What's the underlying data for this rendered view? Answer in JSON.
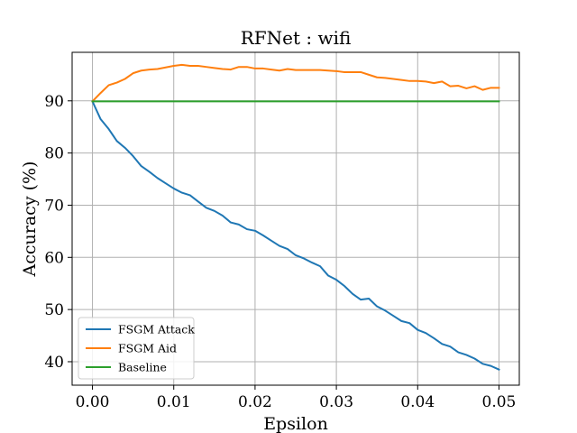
{
  "chart_data": {
    "type": "line",
    "title": "RFNet : wifi",
    "xlabel": "Epsilon",
    "ylabel": "Accuracy (%)",
    "xlim": [
      -0.0025,
      0.0525
    ],
    "ylim": [
      35.5,
      99.3
    ],
    "xticks": [
      0.0,
      0.01,
      0.02,
      0.03,
      0.04,
      0.05
    ],
    "xtick_labels": [
      "0.00",
      "0.01",
      "0.02",
      "0.03",
      "0.04",
      "0.05"
    ],
    "yticks": [
      40,
      50,
      60,
      70,
      80,
      90
    ],
    "ytick_labels": [
      "40",
      "50",
      "60",
      "70",
      "80",
      "90"
    ],
    "grid": true,
    "legend_position": "lower-left",
    "x": [
      0.0,
      0.001,
      0.002,
      0.003,
      0.004,
      0.005,
      0.006,
      0.007,
      0.008,
      0.009,
      0.01,
      0.011,
      0.012,
      0.013,
      0.014,
      0.015,
      0.016,
      0.017,
      0.018,
      0.019,
      0.02,
      0.021,
      0.022,
      0.023,
      0.024,
      0.025,
      0.026,
      0.027,
      0.028,
      0.029,
      0.03,
      0.031,
      0.032,
      0.033,
      0.034,
      0.035,
      0.036,
      0.037,
      0.038,
      0.039,
      0.04,
      0.041,
      0.042,
      0.043,
      0.044,
      0.045,
      0.046,
      0.047,
      0.048,
      0.049,
      0.05
    ],
    "series": [
      {
        "name": "FSGM Attack",
        "color": "#1f77b4",
        "values": [
          89.9,
          86.5,
          84.6,
          82.3,
          81.0,
          79.4,
          77.5,
          76.4,
          75.2,
          74.2,
          73.2,
          72.4,
          71.9,
          70.7,
          69.5,
          68.9,
          68.0,
          66.7,
          66.3,
          65.4,
          65.1,
          64.2,
          63.2,
          62.2,
          61.6,
          60.4,
          59.8,
          59.0,
          58.3,
          56.5,
          55.7,
          54.5,
          53.0,
          51.9,
          52.1,
          50.6,
          49.8,
          48.8,
          47.8,
          47.4,
          46.1,
          45.5,
          44.5,
          43.4,
          42.9,
          41.8,
          41.3,
          40.6,
          39.6,
          39.2,
          38.5
        ]
      },
      {
        "name": "FSGM Aid",
        "color": "#ff7f0e",
        "values": [
          89.9,
          91.5,
          93.0,
          93.5,
          94.2,
          95.3,
          95.8,
          96.0,
          96.1,
          96.4,
          96.7,
          96.9,
          96.7,
          96.7,
          96.5,
          96.3,
          96.1,
          96.0,
          96.5,
          96.5,
          96.2,
          96.2,
          96.0,
          95.8,
          96.1,
          95.9,
          95.9,
          95.9,
          95.9,
          95.8,
          95.7,
          95.5,
          95.5,
          95.5,
          95.0,
          94.5,
          94.4,
          94.2,
          94.0,
          93.8,
          93.8,
          93.7,
          93.4,
          93.7,
          92.8,
          92.9,
          92.4,
          92.8,
          92.1,
          92.5,
          92.5
        ]
      },
      {
        "name": "Baseline",
        "color": "#2ca02c",
        "values": [
          89.9,
          89.9,
          89.9,
          89.9,
          89.9,
          89.9,
          89.9,
          89.9,
          89.9,
          89.9,
          89.9,
          89.9,
          89.9,
          89.9,
          89.9,
          89.9,
          89.9,
          89.9,
          89.9,
          89.9,
          89.9,
          89.9,
          89.9,
          89.9,
          89.9,
          89.9,
          89.9,
          89.9,
          89.9,
          89.9,
          89.9,
          89.9,
          89.9,
          89.9,
          89.9,
          89.9,
          89.9,
          89.9,
          89.9,
          89.9,
          89.9,
          89.9,
          89.9,
          89.9,
          89.9,
          89.9,
          89.9,
          89.9,
          89.9,
          89.9,
          89.9
        ]
      }
    ]
  }
}
